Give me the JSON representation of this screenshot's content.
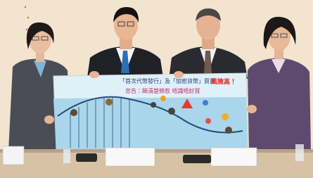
{
  "board": {
    "headline": "「首次代幣發行」及「加密貨幣」買賣",
    "warning": "風險高！",
    "advice": "忠告：睇清楚條款 唔識唔好買"
  }
}
